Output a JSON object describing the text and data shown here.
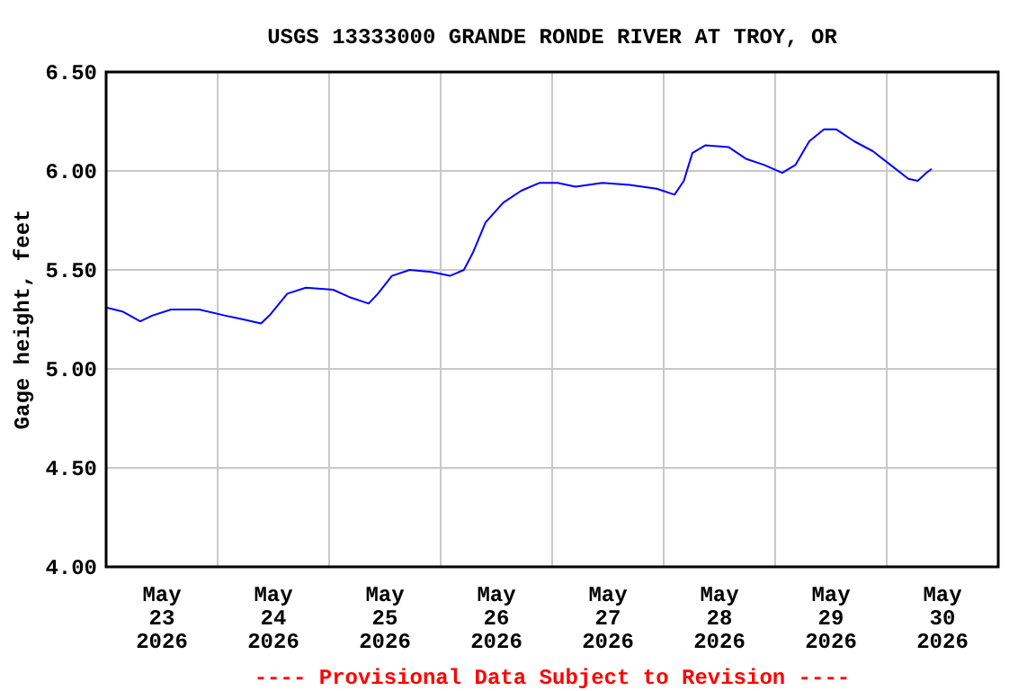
{
  "chart_data": {
    "type": "line",
    "title": "USGS 13333000 GRANDE RONDE RIVER AT TROY, OR",
    "ylabel": "Gage height, feet",
    "x": [
      "2026-05-23T00:00",
      "2026-05-23T03:30",
      "2026-05-23T07:20",
      "2026-05-23T10:00",
      "2026-05-23T14:00",
      "2026-05-23T20:00",
      "2026-05-24T01:30",
      "2026-05-24T05:30",
      "2026-05-24T09:20",
      "2026-05-24T11:10",
      "2026-05-24T15:00",
      "2026-05-24T19:00",
      "2026-05-25T00:50",
      "2026-05-25T04:40",
      "2026-05-25T08:30",
      "2026-05-25T10:30",
      "2026-05-25T13:30",
      "2026-05-25T17:20",
      "2026-05-25T22:00",
      "2026-05-26T02:00",
      "2026-05-26T05:00",
      "2026-05-26T07:00",
      "2026-05-26T09:40",
      "2026-05-26T13:30",
      "2026-05-26T17:20",
      "2026-05-26T21:20",
      "2026-05-27T01:10",
      "2026-05-27T05:00",
      "2026-05-27T10:50",
      "2026-05-27T16:40",
      "2026-05-27T22:30",
      "2026-05-28T02:20",
      "2026-05-28T04:20",
      "2026-05-28T06:10",
      "2026-05-28T09:00",
      "2026-05-28T14:00",
      "2026-05-28T17:50",
      "2026-05-28T21:40",
      "2026-05-29T01:30",
      "2026-05-29T04:20",
      "2026-05-29T07:20",
      "2026-05-29T10:30",
      "2026-05-29T13:10",
      "2026-05-29T17:00",
      "2026-05-29T21:00",
      "2026-05-30T00:50",
      "2026-05-30T04:40",
      "2026-05-30T06:40",
      "2026-05-30T08:30",
      "2026-05-30T09:40"
    ],
    "series": [
      {
        "color": "#0000ff",
        "values": [
          5.31,
          5.29,
          5.24,
          5.27,
          5.3,
          5.3,
          5.27,
          5.25,
          5.23,
          5.27,
          5.38,
          5.41,
          5.4,
          5.36,
          5.33,
          5.38,
          5.47,
          5.5,
          5.49,
          5.47,
          5.5,
          5.59,
          5.74,
          5.84,
          5.9,
          5.94,
          5.94,
          5.92,
          5.94,
          5.93,
          5.91,
          5.88,
          5.95,
          6.09,
          6.13,
          6.12,
          6.06,
          6.03,
          5.99,
          6.03,
          6.15,
          6.21,
          6.21,
          6.15,
          6.1,
          6.03,
          5.96,
          5.95,
          5.99,
          6.01
        ]
      }
    ],
    "xlim": [
      "2026-05-23T00:00",
      "2026-05-31T00:00"
    ],
    "xticks": [
      {
        "value": "2026-05-23T12:00",
        "label": "May\n23\n2026"
      },
      {
        "value": "2026-05-24T12:00",
        "label": "May\n24\n2026"
      },
      {
        "value": "2026-05-25T12:00",
        "label": "May\n25\n2026"
      },
      {
        "value": "2026-05-26T12:00",
        "label": "May\n26\n2026"
      },
      {
        "value": "2026-05-27T12:00",
        "label": "May\n27\n2026"
      },
      {
        "value": "2026-05-28T12:00",
        "label": "May\n28\n2026"
      },
      {
        "value": "2026-05-29T12:00",
        "label": "May\n29\n2026"
      },
      {
        "value": "2026-05-30T12:00",
        "label": "May\n30\n2026"
      },
      {
        "value": "2026-05-24T00:00",
        "label": null
      },
      {
        "value": "2026-05-25T00:00",
        "label": null
      },
      {
        "value": "2026-05-26T00:00",
        "label": null
      },
      {
        "value": "2026-05-27T00:00",
        "label": null
      },
      {
        "value": "2026-05-28T00:00",
        "label": null
      },
      {
        "value": "2026-05-29T00:00",
        "label": null
      },
      {
        "value": "2026-05-30T00:00",
        "label": null
      }
    ],
    "ylim": [
      4.0,
      6.5
    ],
    "yticks": [
      {
        "value": 4.0,
        "label": "4.00"
      },
      {
        "value": 4.5,
        "label": "4.50"
      },
      {
        "value": 5.0,
        "label": "5.00"
      },
      {
        "value": 5.5,
        "label": "5.50"
      },
      {
        "value": 6.0,
        "label": "6.00"
      },
      {
        "value": 6.5,
        "label": "6.50"
      }
    ],
    "grid": true,
    "annotations": [
      "---- Provisional Data Subject to Revision ----"
    ]
  }
}
